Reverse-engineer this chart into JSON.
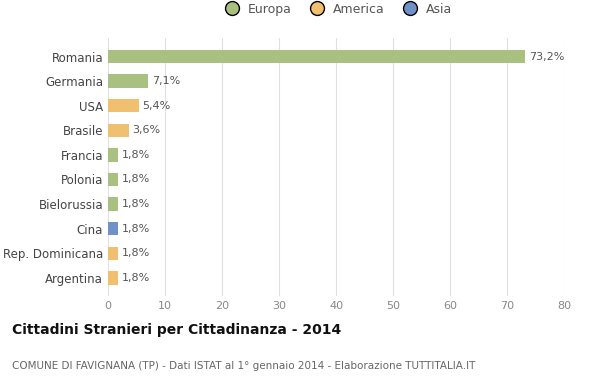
{
  "categories": [
    "Argentina",
    "Rep. Dominicana",
    "Cina",
    "Bielorussia",
    "Polonia",
    "Francia",
    "Brasile",
    "USA",
    "Germania",
    "Romania"
  ],
  "values": [
    1.8,
    1.8,
    1.8,
    1.8,
    1.8,
    1.8,
    3.6,
    5.4,
    7.1,
    73.2
  ],
  "labels": [
    "1,8%",
    "1,8%",
    "1,8%",
    "1,8%",
    "1,8%",
    "1,8%",
    "3,6%",
    "5,4%",
    "7,1%",
    "73,2%"
  ],
  "colors": [
    "#f0c070",
    "#f0c070",
    "#7090c8",
    "#a8c080",
    "#a8c080",
    "#a8c080",
    "#f0c070",
    "#f0c070",
    "#a8c080",
    "#a8c080"
  ],
  "legend_labels": [
    "Europa",
    "America",
    "Asia"
  ],
  "legend_colors": [
    "#a8c080",
    "#f0c070",
    "#7090c8"
  ],
  "title": "Cittadini Stranieri per Cittadinanza - 2014",
  "subtitle": "COMUNE DI FAVIGNANA (TP) - Dati ISTAT al 1° gennaio 2014 - Elaborazione TUTTITALIA.IT",
  "xlim": [
    0,
    80
  ],
  "xticks": [
    0,
    10,
    20,
    30,
    40,
    50,
    60,
    70,
    80
  ],
  "bg_color": "#ffffff",
  "grid_color": "#e0e0e0",
  "bar_height": 0.55
}
